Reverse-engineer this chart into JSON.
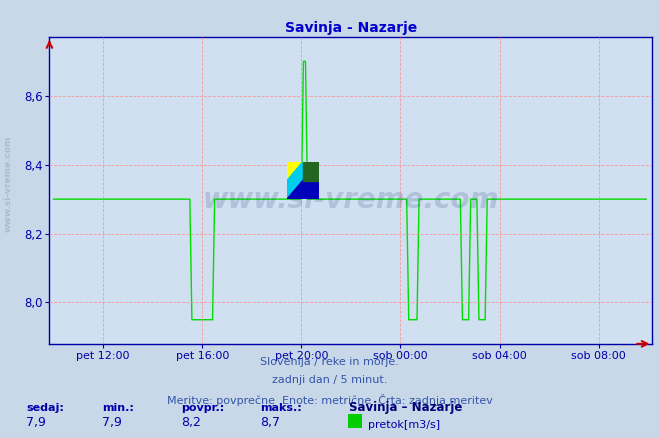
{
  "title": "Savinja - Nazarje",
  "title_color": "#0000cc",
  "bg_color": "#c8d8e8",
  "plot_bg_color": "#d0e0f0",
  "line_color": "#00dd00",
  "line_width": 1.0,
  "grid_color": "#ff8888",
  "grid_alpha": 0.8,
  "ylim": [
    7.88,
    8.77
  ],
  "yticks": [
    8.0,
    8.2,
    8.4,
    8.6
  ],
  "tick_color": "#0000aa",
  "footer_lines": [
    "Slovenija / reke in morje.",
    "zadnji dan / 5 minut.",
    "Meritve: povprečne  Enote: metrične  Črta: zadnja meritev"
  ],
  "footer_color": "#3355aa",
  "footer_fontsize": 8.0,
  "stats_labels": [
    "sedaj:",
    "min.:",
    "povpr.:",
    "maks.:"
  ],
  "stats_values": [
    "7,9",
    "7,9",
    "8,2",
    "8,7"
  ],
  "stats_color": "#0000aa",
  "legend_label": "Savinja – Nazarje",
  "legend_series": "pretok[m3/s]",
  "legend_color": "#00cc00",
  "xticklabels": [
    "pet 12:00",
    "pet 16:00",
    "pet 20:00",
    "sob 00:00",
    "sob 04:00",
    "sob 08:00"
  ],
  "watermark": "www.si-vreme.com",
  "watermark_color": "#1a3a7a",
  "watermark_alpha": 0.18,
  "left_watermark": "www.si-vreme.com",
  "n_points": 288,
  "tick_indices": [
    24,
    72,
    120,
    168,
    216,
    264
  ]
}
